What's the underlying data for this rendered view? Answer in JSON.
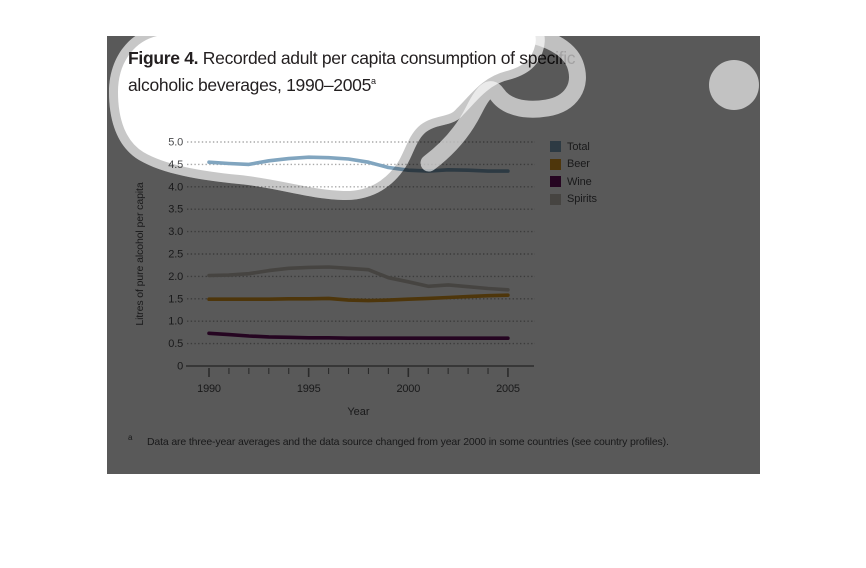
{
  "figure": {
    "title_prefix": "Figure 4.",
    "title_line1_rest": " Recorded adult per capita consumption of specific",
    "title_line2": "alcoholic beverages, 1990–2005",
    "title_superscript": "a",
    "footnote_marker": "a",
    "footnote_text": "Data are three-year averages and the data source changed from year 2000 in some countries (see country profiles)."
  },
  "chart_data": {
    "type": "line",
    "title": "Figure 4. Recorded adult per capita consumption of specific alcoholic beverages, 1990–2005",
    "xlabel": "Year",
    "ylabel": "Litres of pure alcohol per capita",
    "ylim": [
      0,
      5
    ],
    "y_tick_step": 0.5,
    "y_tick_labels": [
      "5.0",
      "4.5",
      "4.0",
      "3.5",
      "3.0",
      "2.5",
      "2.0",
      "1.5",
      "1.0",
      "0.5",
      "0"
    ],
    "y_tick_values": [
      5,
      4.5,
      4,
      3.5,
      3,
      2.5,
      2,
      1.5,
      1,
      0.5,
      0
    ],
    "grid": "horizontal-dotted",
    "legend_position": "top-right",
    "x": [
      1990,
      1991,
      1992,
      1993,
      1994,
      1995,
      1996,
      1997,
      1998,
      1999,
      2000,
      2001,
      2002,
      2003,
      2004,
      2005
    ],
    "x_major_ticks": [
      1990,
      1995,
      2000,
      2005
    ],
    "x_tick_labels": [
      "1990",
      "1995",
      "2000",
      "2005"
    ],
    "series": [
      {
        "name": "Total",
        "color": "#81a5bf",
        "values": [
          4.55,
          4.52,
          4.5,
          4.58,
          4.63,
          4.66,
          4.65,
          4.62,
          4.55,
          4.43,
          4.37,
          4.35,
          4.38,
          4.37,
          4.35,
          4.35
        ]
      },
      {
        "name": "Beer",
        "color": "#e09c20",
        "values": [
          1.49,
          1.49,
          1.49,
          1.49,
          1.5,
          1.5,
          1.51,
          1.47,
          1.46,
          1.47,
          1.49,
          1.51,
          1.53,
          1.55,
          1.57,
          1.58
        ]
      },
      {
        "name": "Wine",
        "color": "#6b1160",
        "values": [
          0.73,
          0.7,
          0.67,
          0.65,
          0.64,
          0.63,
          0.63,
          0.62,
          0.62,
          0.62,
          0.62,
          0.62,
          0.62,
          0.62,
          0.62,
          0.62
        ]
      },
      {
        "name": "Spirits",
        "color": "#c9c4ba",
        "values": [
          2.02,
          2.03,
          2.06,
          2.13,
          2.18,
          2.2,
          2.21,
          2.18,
          2.15,
          1.97,
          1.88,
          1.78,
          1.81,
          1.77,
          1.73,
          1.7
        ]
      }
    ]
  },
  "styles": {
    "panel_overlay_color": "#595959",
    "gridline_color": "#a9a9a9",
    "axis_color": "#9e9e9e",
    "tick_color": "#787878",
    "axis_text_color": "#4a4b4d",
    "title_text_color": "#231f20"
  }
}
